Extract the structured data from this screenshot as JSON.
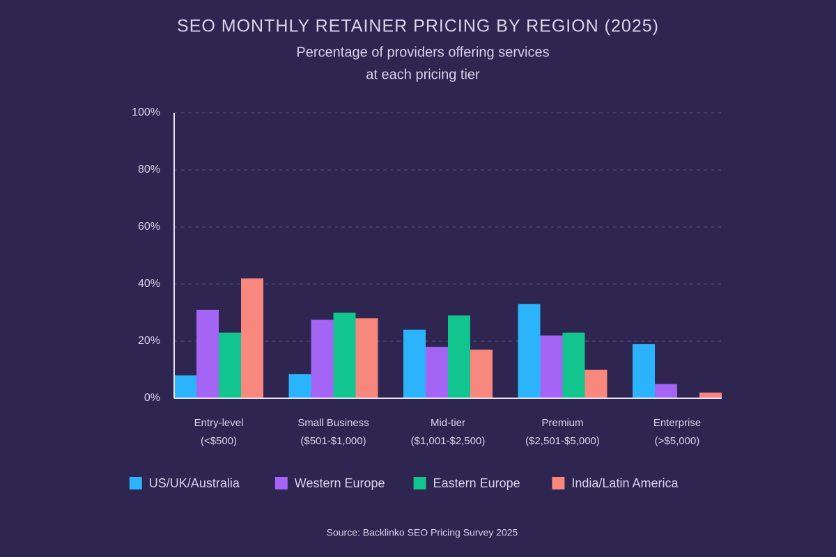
{
  "chart_data": {
    "type": "bar",
    "title": "SEO MONTHLY RETAINER PRICING BY REGION (2025)",
    "subtitle": [
      "Percentage of providers offering services",
      "at each pricing tier"
    ],
    "categories": [
      [
        "Entry-level",
        "(<$500)"
      ],
      [
        "Small Business",
        "($501-$1,000)"
      ],
      [
        "Mid-tier",
        "($1,001-$2,500)"
      ],
      [
        "Premium",
        "($2,501-$5,000)"
      ],
      [
        "Enterprise",
        "(>$5,000)"
      ]
    ],
    "series": [
      {
        "name": "US/UK/Australia",
        "color": "#2bb4fb",
        "values": [
          8,
          8.5,
          24,
          33,
          19
        ]
      },
      {
        "name": "Western Europe",
        "color": "#a565f4",
        "values": [
          31,
          27.5,
          18,
          22,
          5
        ]
      },
      {
        "name": "Eastern Europe",
        "color": "#12c48e",
        "values": [
          23,
          30,
          29,
          23,
          0
        ]
      },
      {
        "name": "India/Latin America",
        "color": "#f8877d",
        "values": [
          42,
          28,
          17,
          10,
          2
        ]
      }
    ],
    "ylim": [
      0,
      100
    ],
    "yticks": [
      {
        "value": 0,
        "label": "0%"
      },
      {
        "value": 20,
        "label": "20%"
      },
      {
        "value": 40,
        "label": "40%"
      },
      {
        "value": 60,
        "label": "60%"
      },
      {
        "value": 80,
        "label": "80%"
      },
      {
        "value": 100,
        "label": "100%"
      }
    ],
    "grid": true,
    "legend": "bottom",
    "source": "Source: Backlinko SEO Pricing Survey 2025"
  }
}
